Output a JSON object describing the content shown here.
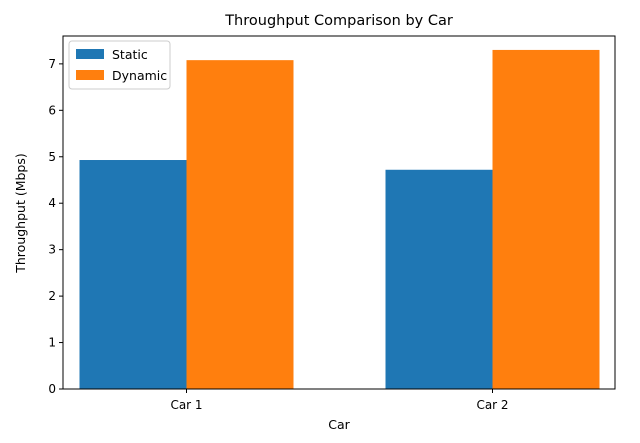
{
  "chart_data": {
    "type": "bar",
    "title": "Throughput Comparison by Car",
    "xlabel": "Car",
    "ylabel": "Throughput (Mbps)",
    "categories": [
      "Car 1",
      "Car 2"
    ],
    "series": [
      {
        "name": "Static",
        "values": [
          4.93,
          4.72
        ],
        "color": "#1f77b4"
      },
      {
        "name": "Dynamic",
        "values": [
          7.08,
          7.3
        ],
        "color": "#ff7f0e"
      }
    ],
    "ylim": [
      0,
      7.6
    ],
    "yticks": [
      0,
      1,
      2,
      3,
      4,
      5,
      6,
      7
    ],
    "grid": false,
    "legend_position": "top-left"
  }
}
